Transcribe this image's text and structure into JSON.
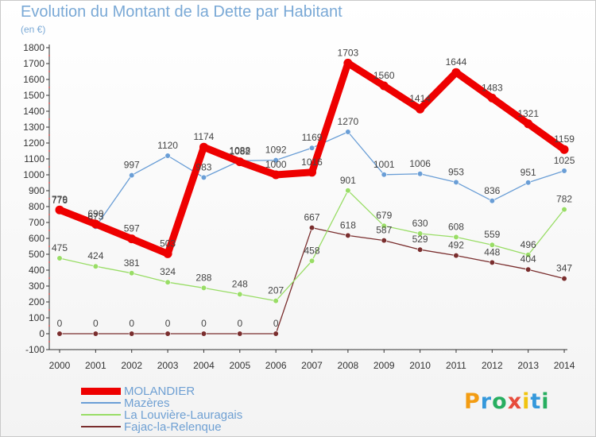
{
  "title": "Evolution du Montant de la Dette par Habitant",
  "subtitle": "(en €)",
  "logo": {
    "letters": [
      "P",
      "r",
      "o",
      "x",
      "i",
      "t",
      "i"
    ],
    "colors": [
      "#f39c12",
      "#3498db",
      "#27ae60",
      "#e74c3c",
      "#f1c40f",
      "#3498db",
      "#27ae60"
    ]
  },
  "chart_data": {
    "type": "line",
    "title": "Evolution du Montant de la Dette par Habitant",
    "ylabel": "(en €)",
    "xlabel": "",
    "x": [
      "2000",
      "2001",
      "2002",
      "2003",
      "2004",
      "2005",
      "2006",
      "2007",
      "2008",
      "2009",
      "2010",
      "2011",
      "2012",
      "2013",
      "2014"
    ],
    "yticks": [
      -100,
      0,
      100,
      200,
      300,
      400,
      500,
      600,
      700,
      800,
      900,
      1000,
      1100,
      1200,
      1300,
      1400,
      1500,
      1600,
      1700,
      1800
    ],
    "ylim": [
      -100,
      1800
    ],
    "grid": false,
    "legend_position": "bottom-left",
    "series": [
      {
        "name": "MOLANDIER",
        "color": "#ee0000",
        "values": [
          779,
          690,
          597,
          503,
          1174,
          1082,
          1000,
          1016,
          1703,
          1560,
          1414,
          1644,
          1483,
          1321,
          1159
        ]
      },
      {
        "name": "Mazères",
        "color": "#6a9ed6",
        "values": [
          776,
          673,
          997,
          1120,
          983,
          1088,
          1092,
          1169,
          1270,
          1001,
          1006,
          953,
          836,
          951,
          1025
        ]
      },
      {
        "name": "La Louvière-Lauragais",
        "color": "#99dd66",
        "values": [
          475,
          424,
          381,
          324,
          288,
          248,
          207,
          458,
          901,
          679,
          630,
          608,
          559,
          496,
          782
        ]
      },
      {
        "name": "Fajac-la-Relenque",
        "color": "#7a2e2e",
        "values": [
          0,
          0,
          0,
          0,
          0,
          0,
          0,
          667,
          618,
          587,
          529,
          492,
          448,
          404,
          347
        ]
      }
    ]
  }
}
